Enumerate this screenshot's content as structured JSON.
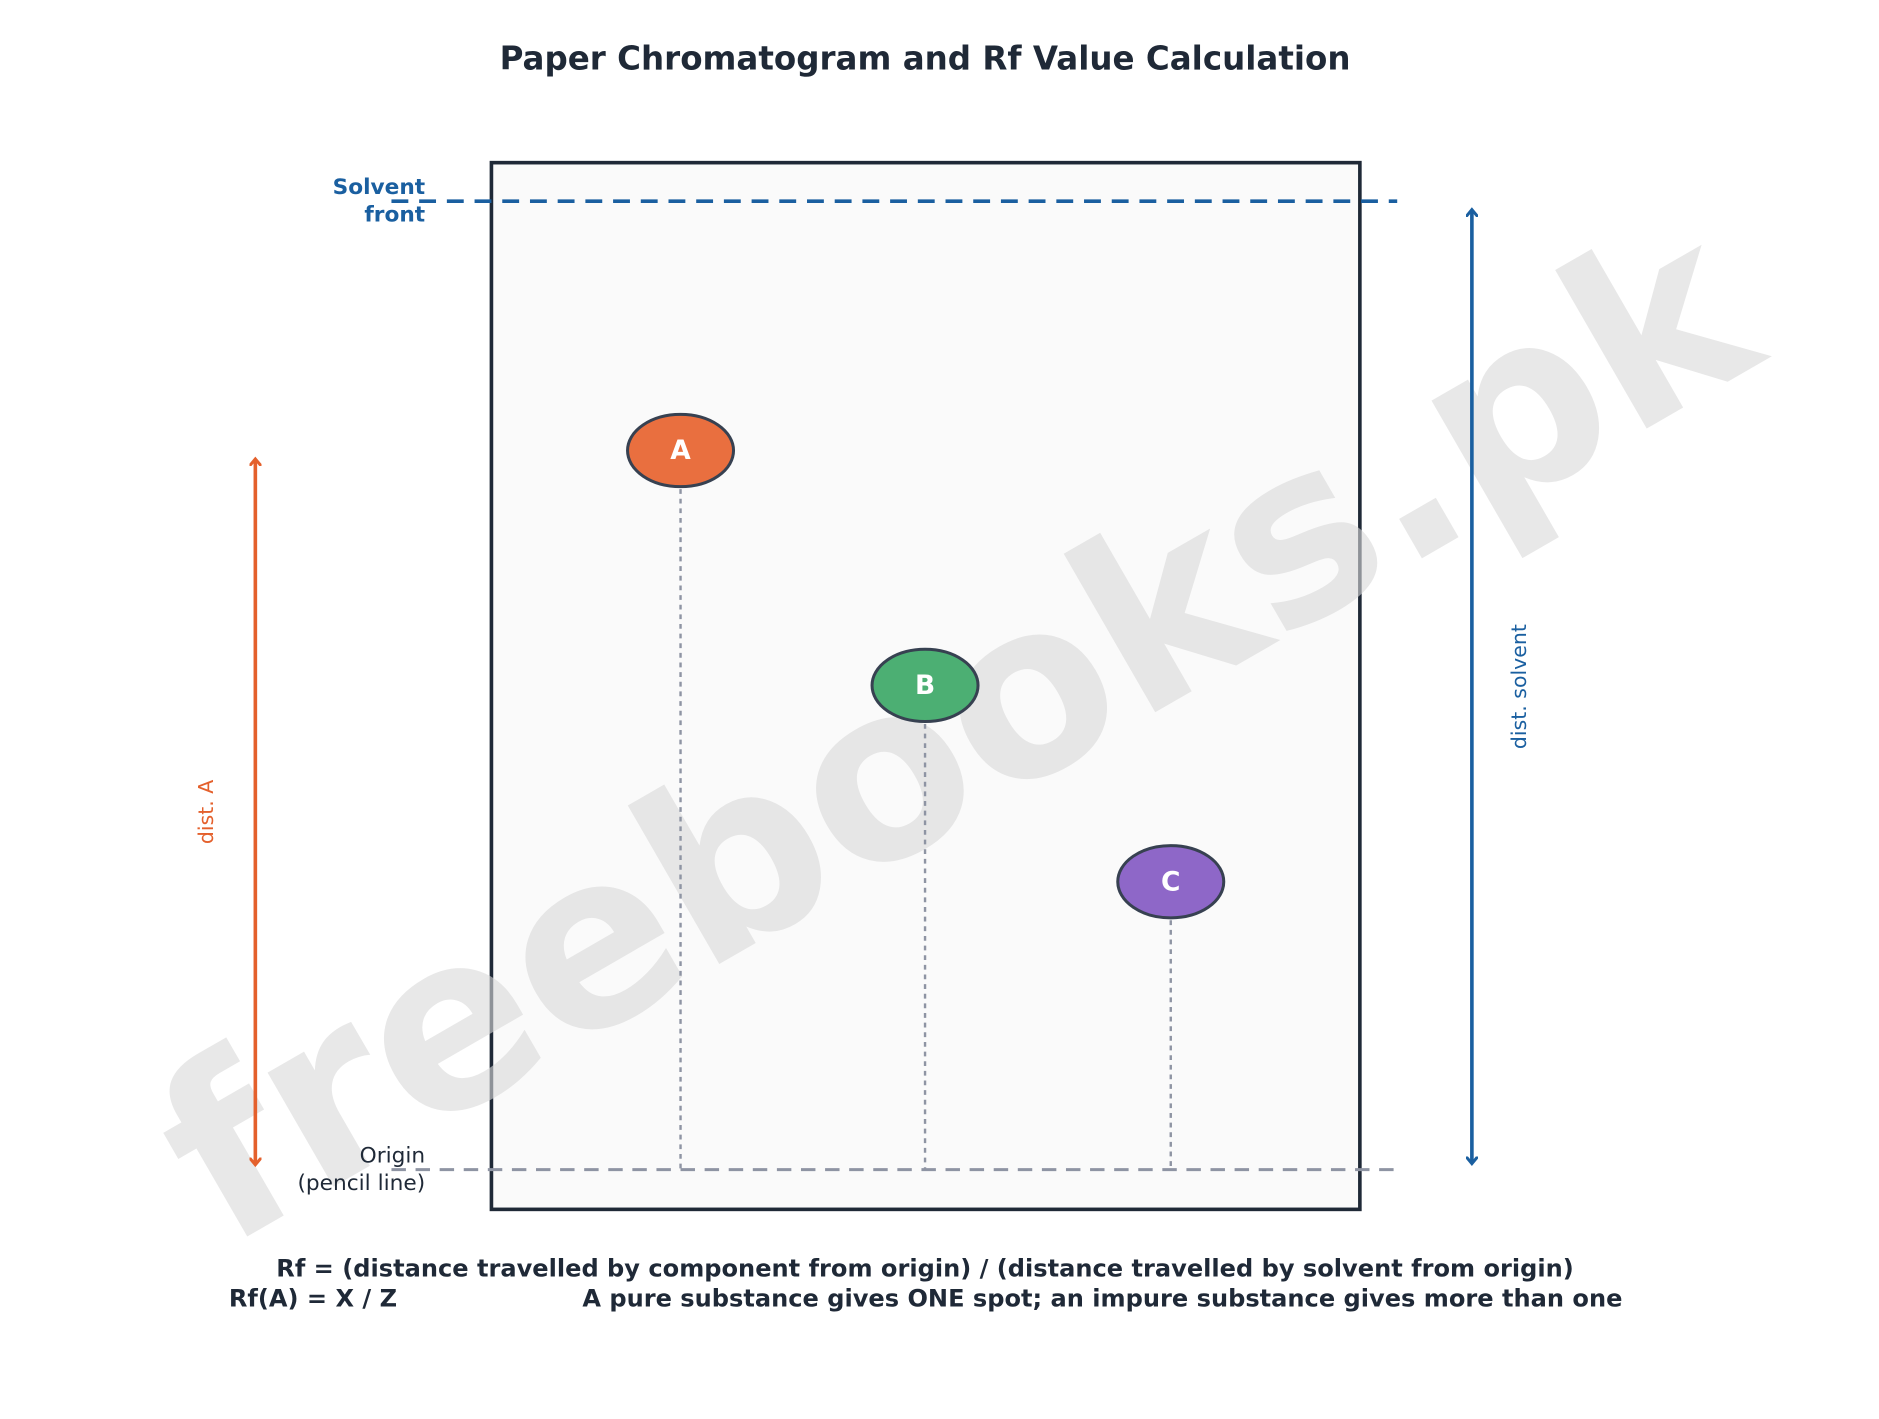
{
  "title": "Paper Chromatogram and Rf Value Calculation",
  "labels": {
    "solvent_front": [
      "Solvent",
      "front"
    ],
    "origin": [
      "Origin",
      "(pencil line)"
    ]
  },
  "spots": [
    {
      "label": "A"
    },
    {
      "label": "B"
    },
    {
      "label": "C"
    }
  ],
  "arrows": {
    "dist_a": "dist. A",
    "dist_solvent": "dist. solvent"
  },
  "footer": {
    "line1": "Rf = (distance travelled by component from origin) / (distance travelled by solvent from origin)",
    "line2_left": "Rf(A) = X / Z",
    "line2_right": "A pure substance gives ONE spot; an impure substance gives more than one"
  },
  "watermark": "freebooks.pk"
}
